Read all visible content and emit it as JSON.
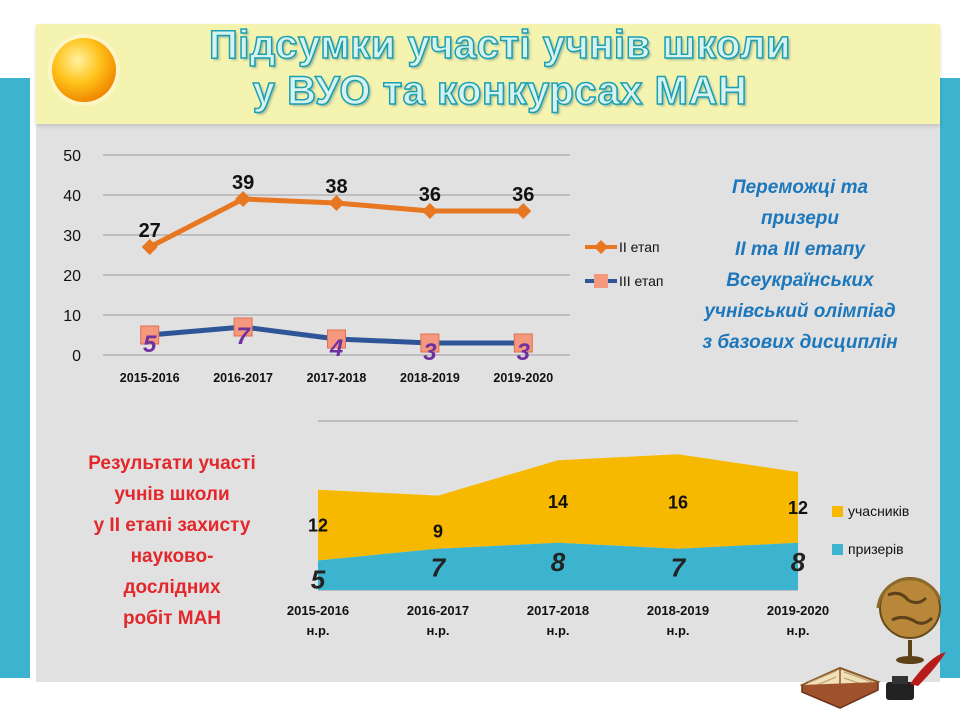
{
  "slide": {
    "title_line1": "Підсумки участі учнів школи",
    "title_line2": "у ВУО та конкурсах МАН",
    "right_caption": [
      "Переможці та",
      "призери",
      "ІІ та ІІІ етапу",
      "Всеукраїнських",
      "учнівський олімпіад",
      "з базових дисциплін"
    ],
    "left_caption": [
      "Результати участі",
      "учнів школи",
      "у ІІ етапі захисту",
      "науково-",
      "дослідних",
      "робіт МАН"
    ]
  },
  "colors": {
    "panel": "#e1e1e1",
    "title_band": "#f4f3b0",
    "accent_teal": "#3cb4cf",
    "stage2": "#e87722",
    "stage3": "#2e5597",
    "stage3_marker": "#f4997d",
    "stage3_label": "#7030a0",
    "participants": "#f7b800",
    "winners": "#3cb4cf",
    "caption_blue": "#1c77bc",
    "caption_red": "#e2282c"
  },
  "chart_data": [
    {
      "type": "line",
      "categories": [
        "2015-2016",
        "2016-2017",
        "2017-2018",
        "2018-2019",
        "2019-2020"
      ],
      "series": [
        {
          "name": "ІІ етап",
          "values": [
            27,
            39,
            38,
            36,
            36
          ]
        },
        {
          "name": "ІІІ етап",
          "values": [
            5,
            7,
            4,
            3,
            3
          ]
        }
      ],
      "ylim": [
        0,
        50
      ],
      "yticks": [
        0,
        10,
        20,
        30,
        40,
        50
      ],
      "grid": true,
      "legend": "right"
    },
    {
      "type": "area",
      "categories": [
        "2015-2016 н.р.",
        "2016-2017 н.р.",
        "2017-2018 н.р.",
        "2018-2019 н.р.",
        "2019-2020 н.р."
      ],
      "series": [
        {
          "name": "призерів",
          "values": [
            5,
            7,
            8,
            7,
            8
          ]
        },
        {
          "name": "учасників",
          "values": [
            12,
            9,
            14,
            16,
            12
          ]
        }
      ],
      "stacked": true,
      "grid": true,
      "legend": "right"
    }
  ]
}
